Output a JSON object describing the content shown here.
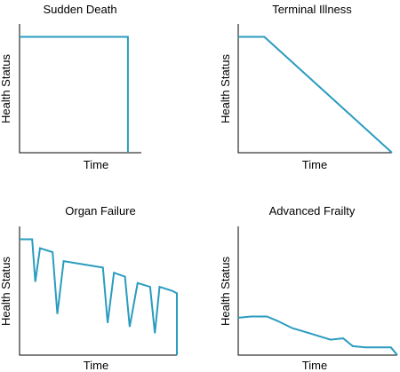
{
  "chart_data": [
    {
      "type": "line",
      "title": "Sudden Death",
      "xlabel": "Time",
      "ylabel": "Health Status",
      "xlim": [
        0,
        100
      ],
      "ylim": [
        0,
        100
      ],
      "color": "#2a9cbf",
      "series": [
        {
          "x": [
            0,
            89,
            89
          ],
          "values": [
            90,
            90,
            0
          ]
        }
      ]
    },
    {
      "type": "line",
      "title": "Terminal Illness",
      "xlabel": "Time",
      "ylabel": "Health Status",
      "xlim": [
        0,
        100
      ],
      "ylim": [
        0,
        100
      ],
      "color": "#2a9cbf",
      "series": [
        {
          "x": [
            0,
            17,
            100
          ],
          "values": [
            90,
            90,
            0
          ]
        }
      ]
    },
    {
      "type": "line",
      "title": "Organ Failure",
      "xlabel": "Time",
      "ylabel": "Health Status",
      "xlim": [
        0,
        100
      ],
      "ylim": [
        0,
        100
      ],
      "color": "#2a9cbf",
      "series": [
        {
          "x": [
            0,
            8,
            10,
            13,
            21,
            24,
            28,
            53,
            56,
            60,
            67,
            70,
            75,
            83,
            86,
            89,
            97,
            100,
            100
          ],
          "values": [
            90,
            90,
            57,
            83,
            80,
            32,
            73,
            68,
            25,
            64,
            61,
            22,
            56,
            53,
            17,
            53,
            50,
            48,
            0
          ]
        }
      ]
    },
    {
      "type": "line",
      "title": "Advanced Frailty",
      "xlabel": "Time",
      "ylabel": "Health Status",
      "xlim": [
        0,
        100
      ],
      "ylim": [
        0,
        100
      ],
      "color": "#2a9cbf",
      "series": [
        {
          "x": [
            0,
            8,
            18,
            24,
            34,
            45,
            58,
            66,
            72,
            80,
            90,
            96,
            100
          ],
          "values": [
            29,
            30,
            30,
            27,
            21,
            17,
            12,
            13,
            7,
            6,
            6,
            6,
            0
          ]
        }
      ]
    }
  ]
}
